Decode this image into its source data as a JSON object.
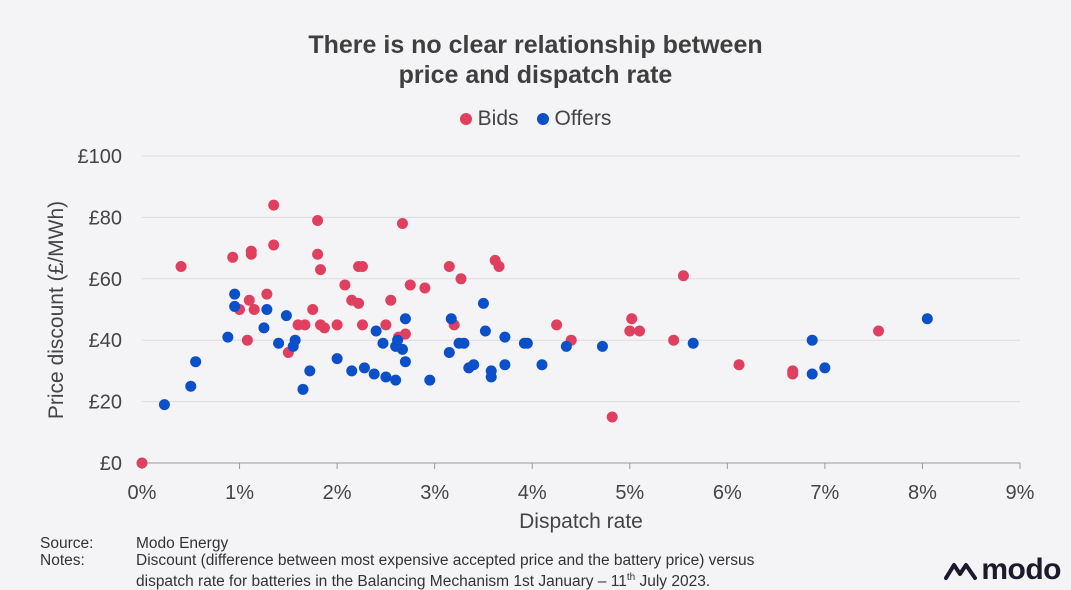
{
  "title_line1": "There is no clear relationship between",
  "title_line2": "price and dispatch rate",
  "legend": [
    {
      "name": "Bids",
      "color": "#e0405f"
    },
    {
      "name": "Offers",
      "color": "#0b4fc9"
    }
  ],
  "footer": {
    "source_label": "Source:",
    "source_text": "Modo Energy",
    "notes_label": "Notes:",
    "notes_line1": "Discount (difference between most expensive accepted price and the battery price) versus",
    "notes_line2_pre": "dispatch rate for batteries in the Balancing Mechanism 1st January – 11",
    "notes_sup": "th",
    "notes_line2_post": " July 2023."
  },
  "logo": {
    "text": "modo",
    "icon": "modo-mountain-icon"
  },
  "chart_data": {
    "type": "scatter",
    "title": "There is no clear relationship between price and dispatch rate",
    "xlabel": "Dispatch rate",
    "ylabel": "Price discount (£/MWh)",
    "xlim": [
      0,
      9
    ],
    "ylim": [
      0,
      100
    ],
    "x_ticks": [
      "0%",
      "1%",
      "2%",
      "3%",
      "4%",
      "5%",
      "6%",
      "7%",
      "8%",
      "9%"
    ],
    "y_ticks": [
      "£0",
      "£20",
      "£40",
      "£60",
      "£80",
      "£100"
    ],
    "grid": "horizontal",
    "legend_position": "top-center",
    "series": [
      {
        "name": "Bids",
        "color": "#e0405f",
        "points": [
          [
            0.0,
            0
          ],
          [
            0.4,
            64
          ],
          [
            0.93,
            67
          ],
          [
            1.0,
            50
          ],
          [
            1.08,
            40
          ],
          [
            1.1,
            53
          ],
          [
            1.12,
            69
          ],
          [
            1.12,
            68
          ],
          [
            1.15,
            50
          ],
          [
            1.28,
            55
          ],
          [
            1.35,
            84
          ],
          [
            1.35,
            71
          ],
          [
            1.5,
            36
          ],
          [
            1.6,
            45
          ],
          [
            1.67,
            45
          ],
          [
            1.75,
            50
          ],
          [
            1.8,
            79
          ],
          [
            1.8,
            68
          ],
          [
            1.83,
            63
          ],
          [
            1.83,
            45
          ],
          [
            1.87,
            44
          ],
          [
            2.0,
            45
          ],
          [
            2.08,
            58
          ],
          [
            2.15,
            53
          ],
          [
            2.22,
            64
          ],
          [
            2.22,
            52
          ],
          [
            2.26,
            64
          ],
          [
            2.26,
            45
          ],
          [
            2.5,
            45
          ],
          [
            2.55,
            53
          ],
          [
            2.63,
            41
          ],
          [
            2.67,
            78
          ],
          [
            2.7,
            42
          ],
          [
            2.75,
            58
          ],
          [
            2.9,
            57
          ],
          [
            3.15,
            64
          ],
          [
            3.2,
            45
          ],
          [
            3.27,
            60
          ],
          [
            3.62,
            66
          ],
          [
            3.66,
            64
          ],
          [
            4.25,
            45
          ],
          [
            4.4,
            40
          ],
          [
            4.82,
            15
          ],
          [
            5.0,
            43
          ],
          [
            5.02,
            47
          ],
          [
            5.1,
            43
          ],
          [
            5.45,
            40
          ],
          [
            5.55,
            61
          ],
          [
            6.12,
            32
          ],
          [
            6.67,
            30
          ],
          [
            6.67,
            29
          ],
          [
            7.55,
            43
          ]
        ]
      },
      {
        "name": "Offers",
        "color": "#0b4fc9",
        "points": [
          [
            0.23,
            19
          ],
          [
            0.5,
            25
          ],
          [
            0.55,
            33
          ],
          [
            0.88,
            41
          ],
          [
            0.95,
            55
          ],
          [
            0.95,
            51
          ],
          [
            1.25,
            44
          ],
          [
            1.28,
            50
          ],
          [
            1.4,
            39
          ],
          [
            1.48,
            48
          ],
          [
            1.55,
            38
          ],
          [
            1.57,
            40
          ],
          [
            1.65,
            24
          ],
          [
            1.72,
            30
          ],
          [
            2.0,
            34
          ],
          [
            2.15,
            30
          ],
          [
            2.28,
            31
          ],
          [
            2.38,
            29
          ],
          [
            2.4,
            43
          ],
          [
            2.47,
            39
          ],
          [
            2.5,
            28
          ],
          [
            2.6,
            38
          ],
          [
            2.6,
            27
          ],
          [
            2.62,
            40
          ],
          [
            2.67,
            37
          ],
          [
            2.7,
            47
          ],
          [
            2.7,
            33
          ],
          [
            2.95,
            27
          ],
          [
            3.15,
            36
          ],
          [
            3.17,
            47
          ],
          [
            3.25,
            39
          ],
          [
            3.3,
            39
          ],
          [
            3.35,
            31
          ],
          [
            3.4,
            32
          ],
          [
            3.5,
            52
          ],
          [
            3.52,
            43
          ],
          [
            3.58,
            30
          ],
          [
            3.58,
            28
          ],
          [
            3.72,
            41
          ],
          [
            3.72,
            32
          ],
          [
            3.92,
            39
          ],
          [
            3.95,
            39
          ],
          [
            4.1,
            32
          ],
          [
            4.35,
            38
          ],
          [
            4.72,
            38
          ],
          [
            5.65,
            39
          ],
          [
            6.87,
            40
          ],
          [
            6.87,
            29
          ],
          [
            7.0,
            31
          ],
          [
            8.05,
            47
          ]
        ]
      }
    ]
  }
}
